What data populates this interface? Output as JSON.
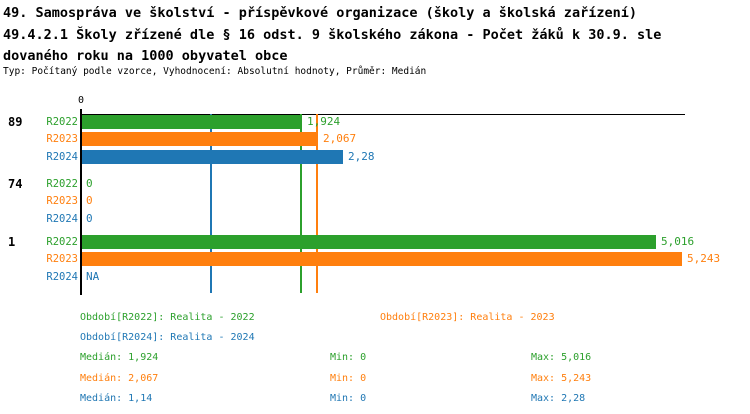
{
  "title": {
    "line1": "49. Samospráva ve školství - příspěvkové organizace (školy a školská zařízení)",
    "line2": "49.4.2.1 Školy zřízené dle § 16 odst. 9 školského zákona - Počet žáků k 30.9. sle",
    "line3": "dovaného roku na 1000 obyvatel obce",
    "type_line": "Typ: Počítaný podle vzorce, Vyhodnocení: Absolutní hodnoty, Průměr: Medián"
  },
  "colors": {
    "series_2022_green": "#2ca02c",
    "series_2023_orange": "#ff7f0e",
    "series_2024_blue": "#1f77b4",
    "axis_black": "#000000",
    "background": "#ffffff"
  },
  "chart_data": {
    "type": "bar",
    "orientation": "horizontal-grouped",
    "x_axis": {
      "position": "top",
      "tick_labels": [
        "0"
      ],
      "xlim": [
        0,
        5.3
      ],
      "grid": false
    },
    "categories": [
      "89",
      "74",
      "1"
    ],
    "series": [
      {
        "name": "R2022",
        "color": "#2ca02c",
        "values": [
          1.924,
          0,
          5.016
        ],
        "value_labels": [
          "1,924",
          "0",
          "5,016"
        ]
      },
      {
        "name": "R2023",
        "color": "#ff7f0e",
        "values": [
          2.067,
          0,
          5.243
        ],
        "value_labels": [
          "2,067",
          "0",
          "5,243"
        ]
      },
      {
        "name": "R2024",
        "color": "#1f77b4",
        "values": [
          2.28,
          0,
          null
        ],
        "value_labels": [
          "2,28",
          "0",
          "NA"
        ]
      }
    ],
    "median_lines": [
      {
        "series": "R2022",
        "value": 1.924,
        "color": "#2ca02c"
      },
      {
        "series": "R2023",
        "value": 2.067,
        "color": "#ff7f0e"
      },
      {
        "series": "R2024",
        "value": 1.14,
        "color": "#1f77b4"
      }
    ],
    "legend_position": "bottom",
    "stats_summary": [
      {
        "series": "R2022",
        "median": 1.924,
        "min": 0,
        "max": 5.016
      },
      {
        "series": "R2023",
        "median": 2.067,
        "min": 0,
        "max": 5.243
      },
      {
        "series": "R2024",
        "median": 1.14,
        "min": 0,
        "max": 2.28
      }
    ]
  },
  "legend": {
    "items": [
      {
        "id": "r2022",
        "label": "Období[R2022]: Realita - 2022",
        "color": "#2ca02c"
      },
      {
        "id": "r2023",
        "label": "Období[R2023]: Realita - 2023",
        "color": "#ff7f0e"
      },
      {
        "id": "r2024",
        "label": "Období[R2024]: Realita - 2024",
        "color": "#1f77b4"
      }
    ]
  },
  "stats": {
    "rows": [
      {
        "id": "r2022",
        "median": "Medián: 1,924",
        "min": "Min: 0",
        "max": "Max: 5,016",
        "color": "#2ca02c"
      },
      {
        "id": "r2023",
        "median": "Medián: 2,067",
        "min": "Min: 0",
        "max": "Max: 5,243",
        "color": "#ff7f0e"
      },
      {
        "id": "r2024",
        "median": "Medián: 1,14",
        "min": "Min: 0",
        "max": "Max: 2,28",
        "color": "#1f77b4"
      }
    ]
  }
}
